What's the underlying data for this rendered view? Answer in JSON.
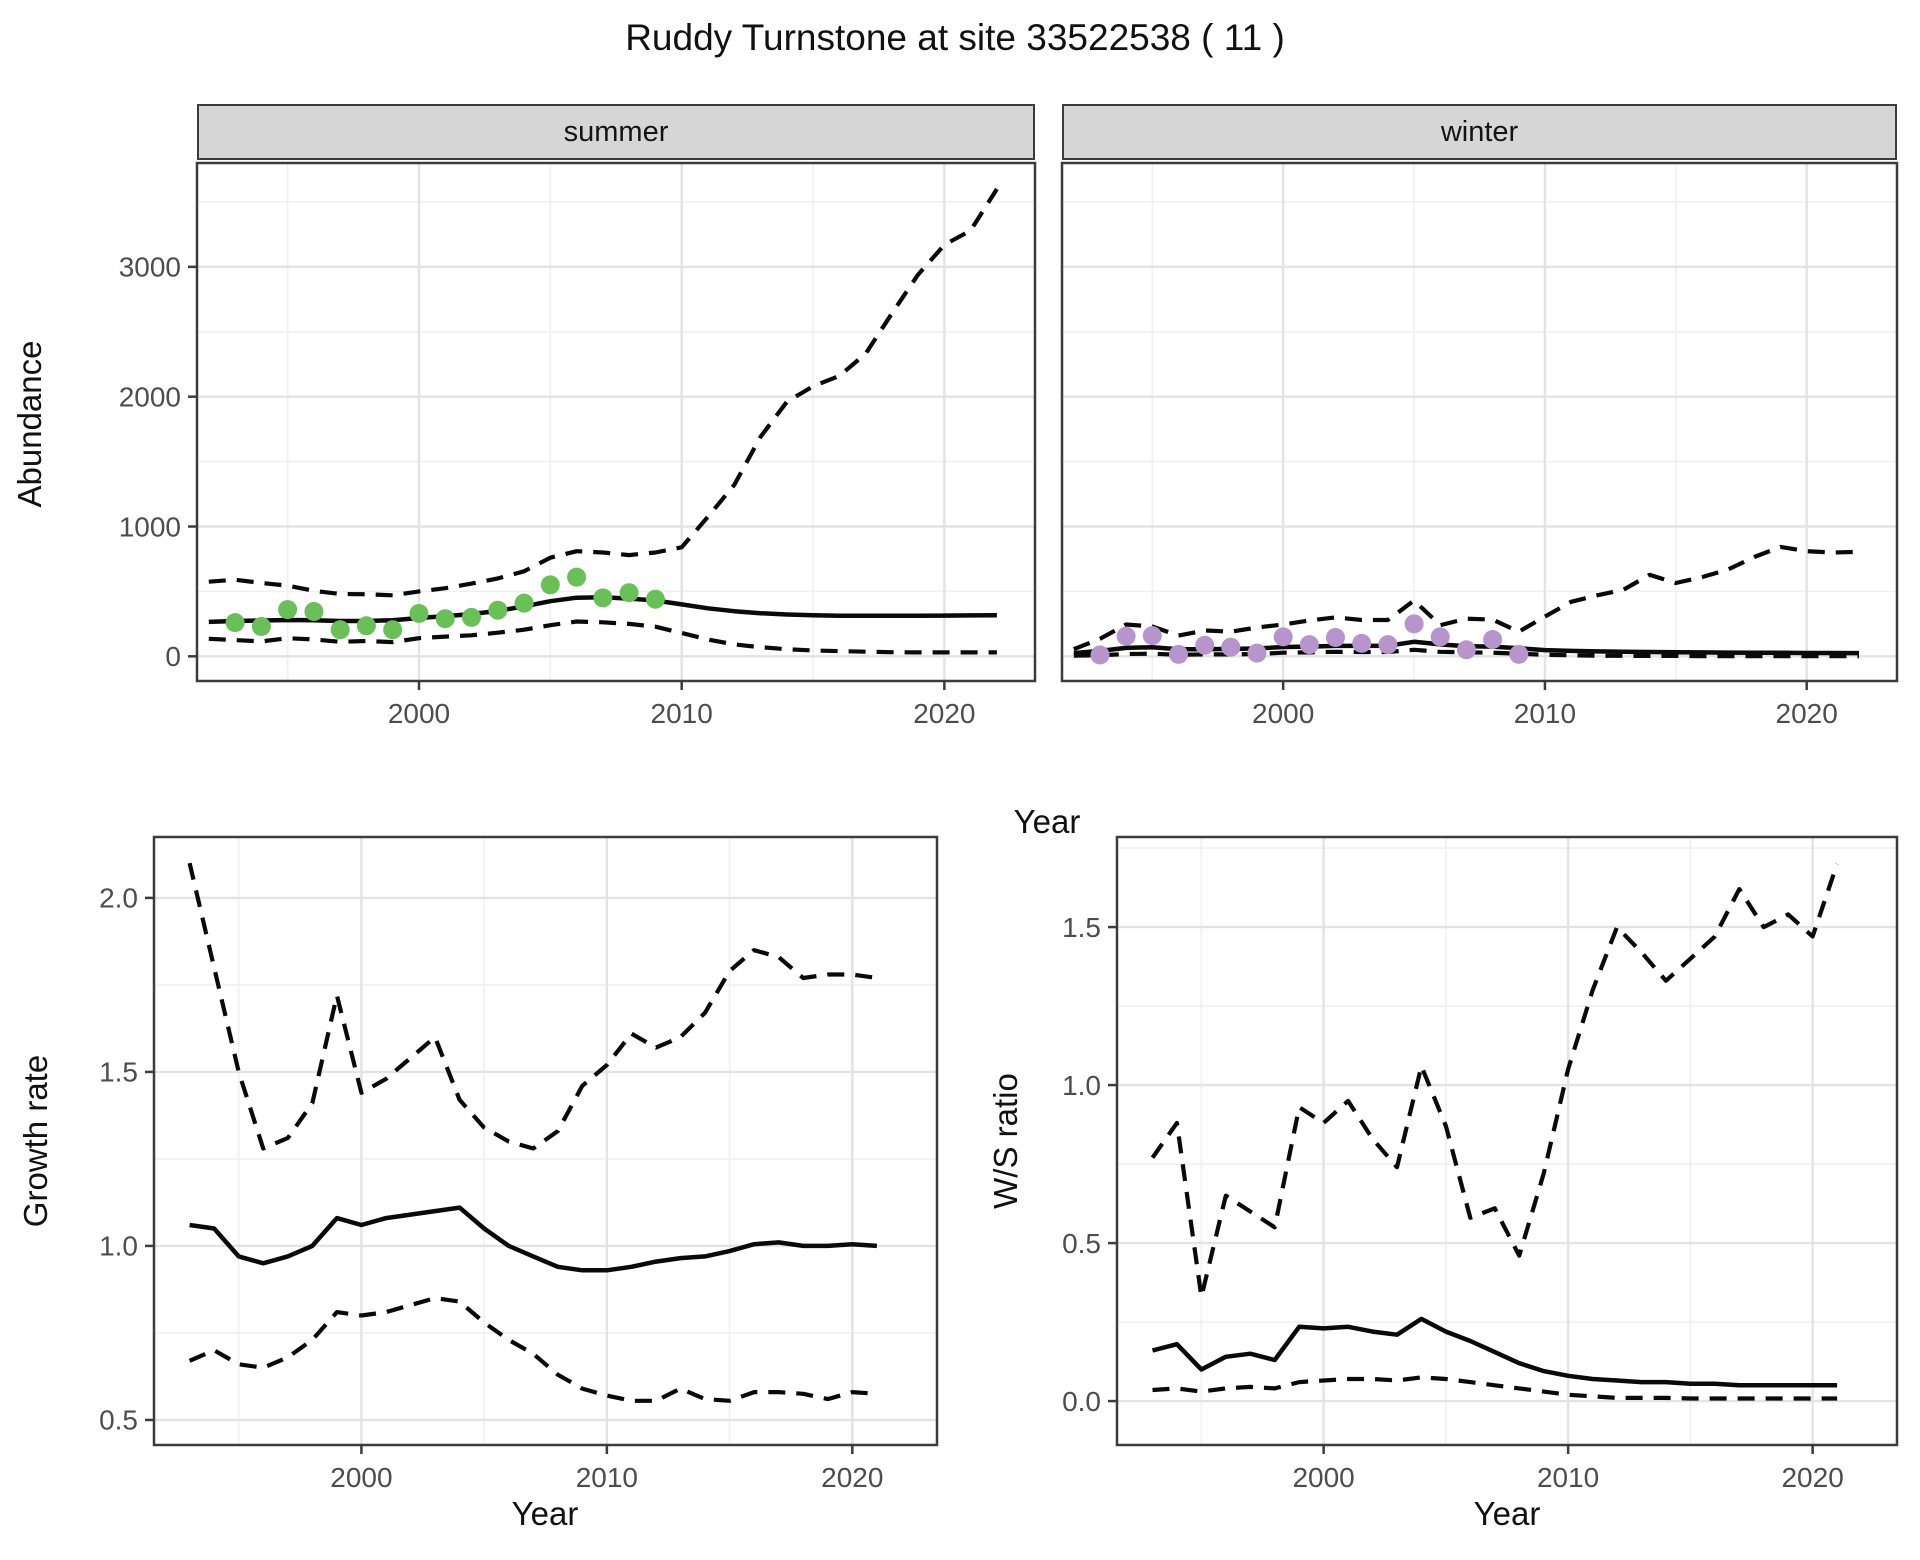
{
  "title": "Ruddy Turnstone at site 33522538 ( 11 )",
  "chart_data": [
    {
      "type": "line",
      "name": "abundance-summer",
      "facet_label": "summer",
      "xlabel": "Year",
      "ylabel": "Abundance",
      "xlim": [
        1991.55,
        2023.45
      ],
      "ylim": [
        -190,
        3800
      ],
      "xticks": {
        "major": [
          2000,
          2010,
          2020
        ],
        "labels": [
          "2000",
          "2010",
          "2020"
        ],
        "minor": [
          1995,
          2005,
          2015
        ]
      },
      "yticks": {
        "major": [
          0,
          1000,
          2000,
          3000
        ],
        "labels": [
          "0",
          "1000",
          "2000",
          "3000"
        ],
        "minor": [
          500,
          1500,
          2500,
          3500
        ]
      },
      "point_color": "#6abf59",
      "line_color": "#0a0a0a",
      "points": {
        "x": [
          1993,
          1994,
          1995,
          1996,
          1997,
          1998,
          1999,
          2000,
          2001,
          2002,
          2003,
          2004,
          2005,
          2006,
          2007,
          2008,
          2009
        ],
        "y": [
          260,
          230,
          360,
          345,
          205,
          235,
          205,
          330,
          290,
          300,
          355,
          410,
          550,
          610,
          450,
          490,
          440
        ]
      },
      "series": [
        {
          "name": "mean",
          "style": "solid",
          "x": [
            1992,
            1993,
            1994,
            1995,
            1996,
            1997,
            1998,
            1999,
            2000,
            2001,
            2002,
            2003,
            2004,
            2005,
            2006,
            2007,
            2008,
            2009,
            2010,
            2011,
            2012,
            2013,
            2014,
            2015,
            2016,
            2017,
            2018,
            2019,
            2020,
            2021,
            2022
          ],
          "y": [
            265,
            272,
            276,
            280,
            278,
            272,
            272,
            278,
            295,
            310,
            325,
            350,
            385,
            425,
            452,
            455,
            445,
            430,
            400,
            370,
            348,
            332,
            322,
            316,
            313,
            312,
            312,
            313,
            314,
            315,
            316
          ]
        },
        {
          "name": "upper-ci",
          "style": "dashed",
          "x": [
            1992,
            1993,
            1994,
            1995,
            1996,
            1997,
            1998,
            1999,
            2000,
            2001,
            2002,
            2003,
            2004,
            2005,
            2006,
            2007,
            2008,
            2009,
            2010,
            2011,
            2012,
            2013,
            2014,
            2015,
            2016,
            2017,
            2018,
            2019,
            2020,
            2021,
            2022
          ],
          "y": [
            575,
            590,
            565,
            545,
            505,
            480,
            478,
            470,
            500,
            525,
            560,
            600,
            655,
            760,
            810,
            800,
            780,
            800,
            840,
            1075,
            1320,
            1690,
            1960,
            2080,
            2160,
            2330,
            2640,
            2940,
            3170,
            3280,
            3600
          ]
        },
        {
          "name": "lower-ci",
          "style": "dashed",
          "x": [
            1992,
            1993,
            1994,
            1995,
            1996,
            1997,
            1998,
            1999,
            2000,
            2001,
            2002,
            2003,
            2004,
            2005,
            2006,
            2007,
            2008,
            2009,
            2010,
            2011,
            2012,
            2013,
            2014,
            2015,
            2016,
            2017,
            2018,
            2019,
            2020,
            2021,
            2022
          ],
          "y": [
            135,
            125,
            115,
            140,
            130,
            112,
            118,
            110,
            140,
            152,
            162,
            182,
            205,
            240,
            268,
            262,
            250,
            228,
            180,
            130,
            92,
            70,
            55,
            45,
            40,
            36,
            32,
            30,
            30,
            30,
            30
          ]
        }
      ]
    },
    {
      "type": "line",
      "name": "abundance-winter",
      "facet_label": "winter",
      "xlabel": "Year",
      "ylabel": "Abundance",
      "xlim": [
        1991.55,
        2023.45
      ],
      "ylim": [
        -190,
        3800
      ],
      "xticks": {
        "major": [
          2000,
          2010,
          2020
        ],
        "labels": [
          "2000",
          "2010",
          "2020"
        ],
        "minor": [
          1995,
          2005,
          2015
        ]
      },
      "yticks": {
        "major": [
          0,
          1000,
          2000,
          3000
        ],
        "labels": [
          "0",
          "1000",
          "2000",
          "3000"
        ],
        "minor": [
          500,
          1500,
          2500,
          3500
        ]
      },
      "point_color": "#b795cc",
      "line_color": "#0a0a0a",
      "points": {
        "x": [
          1993,
          1994,
          1995,
          1996,
          1997,
          1998,
          1999,
          2000,
          2001,
          2002,
          2003,
          2004,
          2005,
          2006,
          2007,
          2008,
          2009
        ],
        "y": [
          10,
          155,
          160,
          15,
          85,
          70,
          25,
          150,
          90,
          145,
          100,
          90,
          250,
          150,
          50,
          130,
          15
        ]
      },
      "series": [
        {
          "name": "mean",
          "style": "solid",
          "x": [
            1992,
            1993,
            1994,
            1995,
            1996,
            1997,
            1998,
            1999,
            2000,
            2001,
            2002,
            2003,
            2004,
            2005,
            2006,
            2007,
            2008,
            2009,
            2010,
            2011,
            2012,
            2013,
            2014,
            2015,
            2016,
            2017,
            2018,
            2019,
            2020,
            2021,
            2022
          ],
          "y": [
            25,
            42,
            65,
            70,
            55,
            55,
            57,
            60,
            72,
            75,
            80,
            80,
            82,
            112,
            92,
            78,
            75,
            62,
            48,
            42,
            38,
            35,
            33,
            31,
            30,
            29,
            28,
            27,
            26,
            26,
            25
          ]
        },
        {
          "name": "upper-ci",
          "style": "dashed",
          "x": [
            1992,
            1993,
            1994,
            1995,
            1996,
            1997,
            1998,
            1999,
            2000,
            2001,
            2002,
            2003,
            2004,
            2005,
            2006,
            2007,
            2008,
            2009,
            2010,
            2011,
            2012,
            2013,
            2014,
            2015,
            2016,
            2017,
            2018,
            2019,
            2020,
            2021,
            2022
          ],
          "y": [
            55,
            135,
            245,
            230,
            160,
            200,
            190,
            222,
            245,
            276,
            300,
            280,
            280,
            430,
            240,
            290,
            283,
            190,
            306,
            420,
            470,
            513,
            628,
            565,
            610,
            670,
            765,
            843,
            810,
            800,
            805
          ]
        },
        {
          "name": "lower-ci",
          "style": "dashed",
          "x": [
            1992,
            1993,
            1994,
            1995,
            1996,
            1997,
            1998,
            1999,
            2000,
            2001,
            2002,
            2003,
            2004,
            2005,
            2006,
            2007,
            2008,
            2009,
            2010,
            2011,
            2012,
            2013,
            2014,
            2015,
            2016,
            2017,
            2018,
            2019,
            2020,
            2021,
            2022
          ],
          "y": [
            5,
            8,
            18,
            20,
            12,
            15,
            15,
            18,
            28,
            30,
            35,
            33,
            33,
            50,
            35,
            30,
            28,
            20,
            12,
            8,
            5,
            4,
            3,
            3,
            2,
            2,
            2,
            2,
            2,
            2,
            2
          ]
        }
      ]
    },
    {
      "type": "line",
      "name": "growth-rate",
      "xlabel": "Year",
      "ylabel": "Growth rate",
      "xlim": [
        1991.55,
        2023.45
      ],
      "ylim": [
        0.428,
        2.175
      ],
      "xticks": {
        "major": [
          2000,
          2010,
          2020
        ],
        "labels": [
          "2000",
          "2010",
          "2020"
        ],
        "minor": [
          1995,
          2005,
          2015
        ]
      },
      "yticks": {
        "major": [
          0.5,
          1.0,
          1.5,
          2.0
        ],
        "labels": [
          "0.5",
          "1.0",
          "1.5",
          "2.0"
        ],
        "minor": [
          0.75,
          1.25,
          1.75
        ]
      },
      "line_color": "#0a0a0a",
      "series": [
        {
          "name": "mean",
          "style": "solid",
          "x": [
            1993,
            1994,
            1995,
            1996,
            1997,
            1998,
            1999,
            2000,
            2001,
            2002,
            2003,
            2004,
            2005,
            2006,
            2007,
            2008,
            2009,
            2010,
            2011,
            2012,
            2013,
            2014,
            2015,
            2016,
            2017,
            2018,
            2019,
            2020,
            2021
          ],
          "y": [
            1.06,
            1.05,
            0.97,
            0.95,
            0.97,
            1.0,
            1.08,
            1.06,
            1.08,
            1.09,
            1.1,
            1.11,
            1.05,
            1.0,
            0.97,
            0.94,
            0.93,
            0.93,
            0.94,
            0.955,
            0.965,
            0.97,
            0.985,
            1.005,
            1.01,
            1.0,
            1.0,
            1.005,
            1.0
          ]
        },
        {
          "name": "upper-ci",
          "style": "dashed",
          "x": [
            1993,
            1994,
            1995,
            1996,
            1997,
            1998,
            1999,
            2000,
            2001,
            2002,
            2003,
            2004,
            2005,
            2006,
            2007,
            2008,
            2009,
            2010,
            2011,
            2012,
            2013,
            2014,
            2015,
            2016,
            2017,
            2018,
            2019,
            2020,
            2021
          ],
          "y": [
            2.1,
            1.8,
            1.5,
            1.28,
            1.31,
            1.41,
            1.72,
            1.44,
            1.48,
            1.54,
            1.6,
            1.42,
            1.34,
            1.3,
            1.28,
            1.33,
            1.46,
            1.52,
            1.61,
            1.57,
            1.6,
            1.67,
            1.79,
            1.85,
            1.83,
            1.77,
            1.78,
            1.78,
            1.77
          ]
        },
        {
          "name": "lower-ci",
          "style": "dashed",
          "x": [
            1993,
            1994,
            1995,
            1996,
            1997,
            1998,
            1999,
            2000,
            2001,
            2002,
            2003,
            2004,
            2005,
            2006,
            2007,
            2008,
            2009,
            2010,
            2011,
            2012,
            2013,
            2014,
            2015,
            2016,
            2017,
            2018,
            2019,
            2020,
            2021
          ],
          "y": [
            0.67,
            0.7,
            0.66,
            0.65,
            0.68,
            0.73,
            0.81,
            0.8,
            0.81,
            0.83,
            0.85,
            0.84,
            0.78,
            0.73,
            0.69,
            0.63,
            0.59,
            0.57,
            0.555,
            0.555,
            0.59,
            0.56,
            0.555,
            0.58,
            0.58,
            0.575,
            0.56,
            0.58,
            0.575
          ]
        }
      ]
    },
    {
      "type": "line",
      "name": "winter-summer-ratio",
      "xlabel": "Year",
      "ylabel": "W/S ratio",
      "xlim": [
        1991.55,
        2023.45
      ],
      "ylim": [
        -0.139,
        1.785
      ],
      "xticks": {
        "major": [
          2000,
          2010,
          2020
        ],
        "labels": [
          "2000",
          "2010",
          "2020"
        ],
        "minor": [
          1995,
          2005,
          2015
        ]
      },
      "yticks": {
        "major": [
          0.0,
          0.5,
          1.0,
          1.5
        ],
        "labels": [
          "0.0",
          "0.5",
          "1.0",
          "1.5"
        ],
        "minor": [
          0.25,
          0.75,
          1.25,
          1.75
        ]
      },
      "line_color": "#0a0a0a",
      "series": [
        {
          "name": "mean",
          "style": "solid",
          "x": [
            1993,
            1994,
            1995,
            1996,
            1997,
            1998,
            1999,
            2000,
            2001,
            2002,
            2003,
            2004,
            2005,
            2006,
            2007,
            2008,
            2009,
            2010,
            2011,
            2012,
            2013,
            2014,
            2015,
            2016,
            2017,
            2018,
            2019,
            2020,
            2021
          ],
          "y": [
            0.16,
            0.18,
            0.1,
            0.14,
            0.15,
            0.13,
            0.235,
            0.23,
            0.235,
            0.22,
            0.21,
            0.26,
            0.22,
            0.19,
            0.155,
            0.12,
            0.095,
            0.08,
            0.07,
            0.065,
            0.06,
            0.06,
            0.055,
            0.055,
            0.05,
            0.05,
            0.05,
            0.05,
            0.05
          ]
        },
        {
          "name": "upper-ci",
          "style": "dashed",
          "x": [
            1993,
            1994,
            1995,
            1996,
            1997,
            1998,
            1999,
            2000,
            2001,
            2002,
            2003,
            2004,
            2005,
            2006,
            2007,
            2008,
            2009,
            2010,
            2011,
            2012,
            2013,
            2014,
            2015,
            2016,
            2017,
            2018,
            2019,
            2020,
            2021
          ],
          "y": [
            0.77,
            0.88,
            0.33,
            0.65,
            0.6,
            0.55,
            0.93,
            0.88,
            0.95,
            0.83,
            0.74,
            1.06,
            0.87,
            0.58,
            0.61,
            0.46,
            0.72,
            1.05,
            1.3,
            1.5,
            1.42,
            1.33,
            1.4,
            1.47,
            1.62,
            1.5,
            1.54,
            1.47,
            1.7
          ]
        },
        {
          "name": "lower-ci",
          "style": "dashed",
          "x": [
            1993,
            1994,
            1995,
            1996,
            1997,
            1998,
            1999,
            2000,
            2001,
            2002,
            2003,
            2004,
            2005,
            2006,
            2007,
            2008,
            2009,
            2010,
            2011,
            2012,
            2013,
            2014,
            2015,
            2016,
            2017,
            2018,
            2019,
            2020,
            2021
          ],
          "y": [
            0.035,
            0.04,
            0.03,
            0.04,
            0.045,
            0.04,
            0.06,
            0.065,
            0.07,
            0.07,
            0.065,
            0.075,
            0.07,
            0.06,
            0.05,
            0.04,
            0.03,
            0.02,
            0.015,
            0.01,
            0.01,
            0.01,
            0.008,
            0.008,
            0.008,
            0.008,
            0.008,
            0.008,
            0.008
          ]
        }
      ]
    }
  ]
}
